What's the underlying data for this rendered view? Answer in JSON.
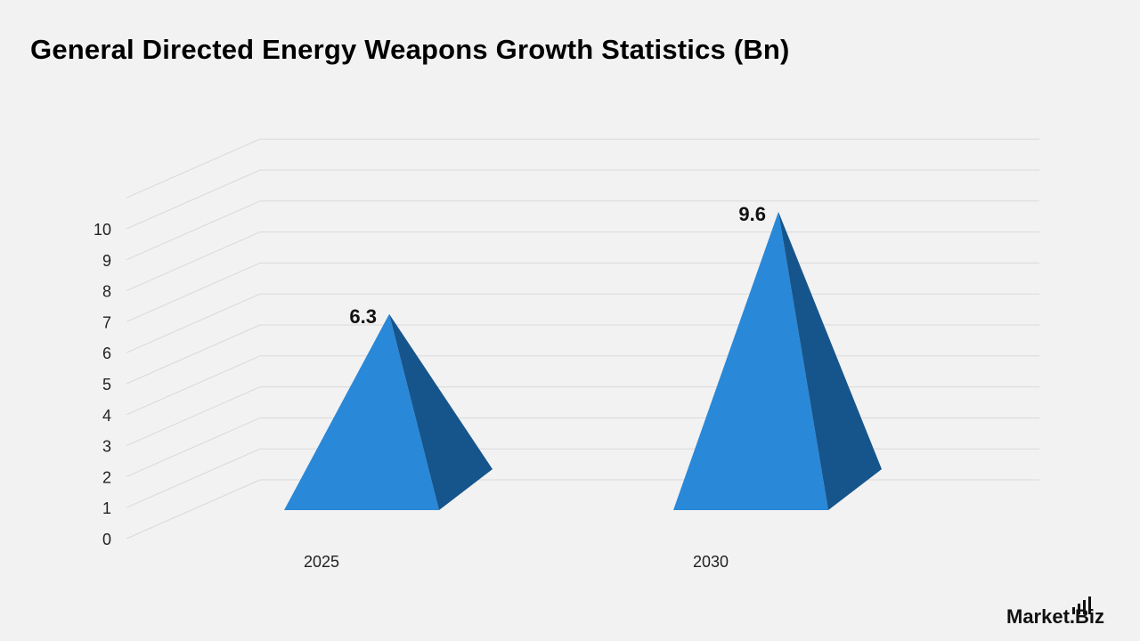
{
  "title": "General Directed Energy Weapons Growth Statistics (Bn)",
  "brand": "Market.Biz",
  "chart_data": {
    "type": "bar",
    "subtype": "3d-pyramid",
    "title": "General Directed Energy Weapons Growth Statistics (Bn)",
    "categories": [
      "2025",
      "2030"
    ],
    "series": [
      {
        "values": [
          6.3,
          9.6
        ]
      }
    ],
    "data_labels": [
      "6.3",
      "9.6"
    ],
    "ylim": [
      0,
      10
    ],
    "yticks": [
      0,
      1,
      2,
      3,
      4,
      5,
      6,
      7,
      8,
      9,
      10
    ],
    "grid": true,
    "legend": "none",
    "colors": {
      "front": "#2a88d8",
      "side": "#16558c",
      "grid": "#d9d9d9",
      "tick_text": "#222222",
      "label_text": "#111111"
    }
  }
}
